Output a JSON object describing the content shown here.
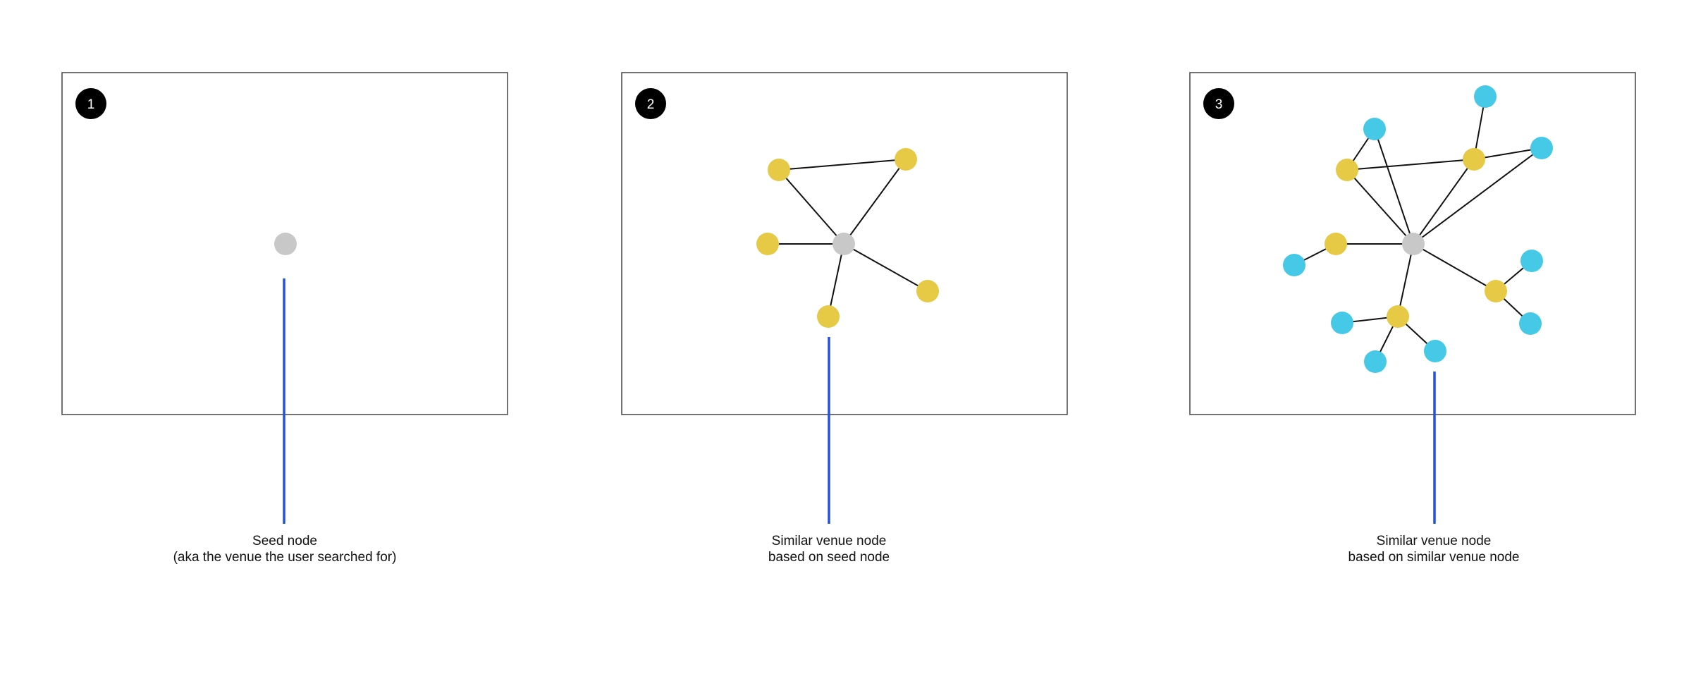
{
  "colors": {
    "seed": "#c8c8c8",
    "similar": "#e6c945",
    "second_level": "#45c9e6",
    "pointer": "#2350e0",
    "edge": "#111111",
    "frame": "#444444",
    "badge": "#000000",
    "badge_text": "#ffffff"
  },
  "panels": [
    {
      "badge": "1",
      "caption_line1": "Seed node",
      "caption_line2": "(aka the venue the user searched for)"
    },
    {
      "badge": "2",
      "caption_line1": "Similar venue node",
      "caption_line2": "based on seed node"
    },
    {
      "badge": "3",
      "caption_line1": "Similar venue node",
      "caption_line2": "based on similar venue node"
    }
  ]
}
